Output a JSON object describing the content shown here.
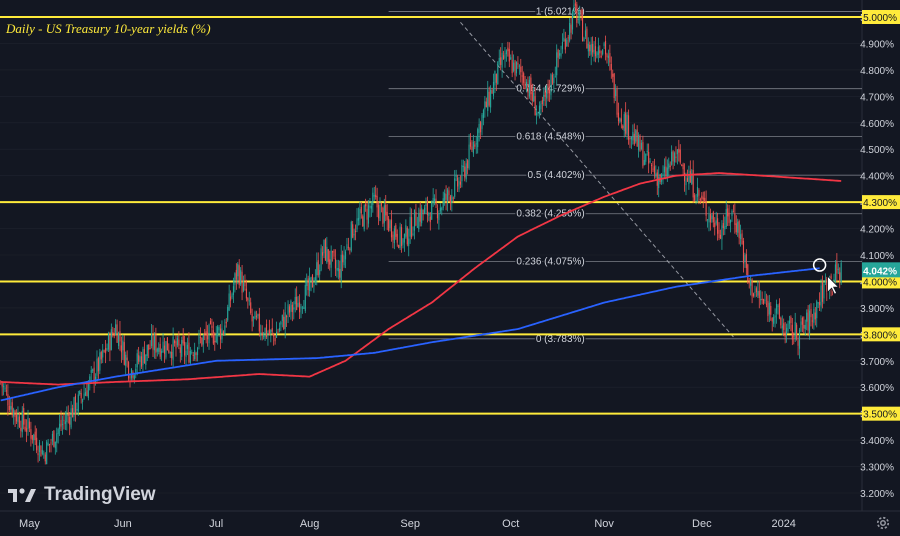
{
  "title": "Daily - US Treasury 10-year yields (%)",
  "branding": {
    "logo_text": "TradingView",
    "logo_icon": "tradingview-logo-icon"
  },
  "settings_icon": "gear-icon",
  "colors": {
    "background": "#131722",
    "grid": "#363a45",
    "axis_text": "#d1d4dc",
    "up_candle": "#26a69a",
    "down_candle": "#ef5350",
    "ma_fast": "#2962ff",
    "ma_slow": "#f23645",
    "horizontal_level": "#ffeb3b",
    "fib_line": "#d1d4dc",
    "trend_line": "#9598a1",
    "price_badge": "#26a69a"
  },
  "chart_data": {
    "type": "candlestick",
    "title": "Daily - US Treasury 10-year yields (%)",
    "y_axis": {
      "ticks": [
        "5.000%",
        "4.900%",
        "4.800%",
        "4.700%",
        "4.600%",
        "4.500%",
        "4.400%",
        "4.300%",
        "4.200%",
        "4.100%",
        "4.000%",
        "3.900%",
        "3.800%",
        "3.700%",
        "3.600%",
        "3.500%",
        "3.400%",
        "3.300%",
        "3.200%"
      ],
      "tick_values": [
        5.0,
        4.9,
        4.8,
        4.7,
        4.6,
        4.5,
        4.4,
        4.3,
        4.2,
        4.1,
        4.0,
        3.9,
        3.8,
        3.7,
        3.6,
        3.5,
        3.4,
        3.3,
        3.2
      ],
      "ylim": [
        3.15,
        5.05
      ],
      "side": "right"
    },
    "x_axis": {
      "labels": [
        "May",
        "Jun",
        "Jul",
        "Aug",
        "Sep",
        "Oct",
        "Nov",
        "Dec",
        "2024"
      ],
      "label_index": [
        20,
        85,
        150,
        215,
        285,
        355,
        420,
        488,
        545
      ]
    },
    "total_bars": 600,
    "current_price": "4.042%",
    "current_price_value": 4.042,
    "highlighted_levels": [
      5.0,
      4.3,
      4.0,
      3.8,
      3.5
    ],
    "highlighted_level_labels": [
      "5.000%",
      "4.300%",
      "4.000%",
      "3.800%",
      "3.500%"
    ],
    "fib_retracement": [
      {
        "label": "1 (5.021%)",
        "value": 5.021
      },
      {
        "label": "0.764 (4.729%)",
        "value": 4.729
      },
      {
        "label": "0.618 (4.548%)",
        "value": 4.548
      },
      {
        "label": "0.5 (4.402%)",
        "value": 4.402
      },
      {
        "label": "0.382 (4.256%)",
        "value": 4.256
      },
      {
        "label": "0.236 (4.075%)",
        "value": 4.075
      },
      {
        "label": "0 (3.783%)",
        "value": 3.783
      }
    ],
    "fib_start_index": 270,
    "fib_end_index": 555,
    "trend_line": {
      "from": [
        320,
        4.98
      ],
      "to": [
        510,
        3.79
      ]
    },
    "price_anchors": [
      [
        0,
        3.62
      ],
      [
        10,
        3.5
      ],
      [
        20,
        3.44
      ],
      [
        30,
        3.35
      ],
      [
        40,
        3.44
      ],
      [
        55,
        3.55
      ],
      [
        70,
        3.7
      ],
      [
        80,
        3.83
      ],
      [
        90,
        3.66
      ],
      [
        105,
        3.76
      ],
      [
        115,
        3.76
      ],
      [
        130,
        3.73
      ],
      [
        140,
        3.78
      ],
      [
        155,
        3.82
      ],
      [
        165,
        4.05
      ],
      [
        175,
        3.85
      ],
      [
        190,
        3.79
      ],
      [
        200,
        3.88
      ],
      [
        215,
        3.97
      ],
      [
        225,
        4.12
      ],
      [
        235,
        4.03
      ],
      [
        245,
        4.2
      ],
      [
        260,
        4.3
      ],
      [
        270,
        4.22
      ],
      [
        280,
        4.15
      ],
      [
        290,
        4.25
      ],
      [
        305,
        4.28
      ],
      [
        320,
        4.38
      ],
      [
        335,
        4.62
      ],
      [
        350,
        4.85
      ],
      [
        365,
        4.77
      ],
      [
        375,
        4.62
      ],
      [
        390,
        4.88
      ],
      [
        400,
        5.02
      ],
      [
        410,
        4.88
      ],
      [
        420,
        4.9
      ],
      [
        430,
        4.65
      ],
      [
        440,
        4.55
      ],
      [
        450,
        4.45
      ],
      [
        460,
        4.38
      ],
      [
        470,
        4.48
      ],
      [
        480,
        4.38
      ],
      [
        490,
        4.28
      ],
      [
        500,
        4.2
      ],
      [
        510,
        4.26
      ],
      [
        515,
        4.17
      ],
      [
        520,
        4.0
      ],
      [
        530,
        3.92
      ],
      [
        540,
        3.88
      ],
      [
        545,
        3.82
      ],
      [
        555,
        3.8
      ],
      [
        565,
        3.87
      ],
      [
        575,
        4.0
      ],
      [
        585,
        4.04
      ]
    ],
    "ma_fast_anchors": [
      [
        0,
        3.55
      ],
      [
        40,
        3.6
      ],
      [
        80,
        3.64
      ],
      [
        150,
        3.7
      ],
      [
        220,
        3.71
      ],
      [
        260,
        3.73
      ],
      [
        300,
        3.77
      ],
      [
        360,
        3.82
      ],
      [
        420,
        3.92
      ],
      [
        470,
        3.98
      ],
      [
        520,
        4.02
      ],
      [
        570,
        4.05
      ]
    ],
    "ma_slow_anchors": [
      [
        0,
        3.62
      ],
      [
        40,
        3.61
      ],
      [
        80,
        3.62
      ],
      [
        130,
        3.63
      ],
      [
        180,
        3.65
      ],
      [
        215,
        3.64
      ],
      [
        240,
        3.7
      ],
      [
        270,
        3.82
      ],
      [
        300,
        3.92
      ],
      [
        330,
        4.05
      ],
      [
        360,
        4.17
      ],
      [
        390,
        4.25
      ],
      [
        420,
        4.32
      ],
      [
        445,
        4.37
      ],
      [
        470,
        4.4
      ],
      [
        500,
        4.41
      ],
      [
        530,
        4.4
      ],
      [
        585,
        4.38
      ]
    ]
  }
}
